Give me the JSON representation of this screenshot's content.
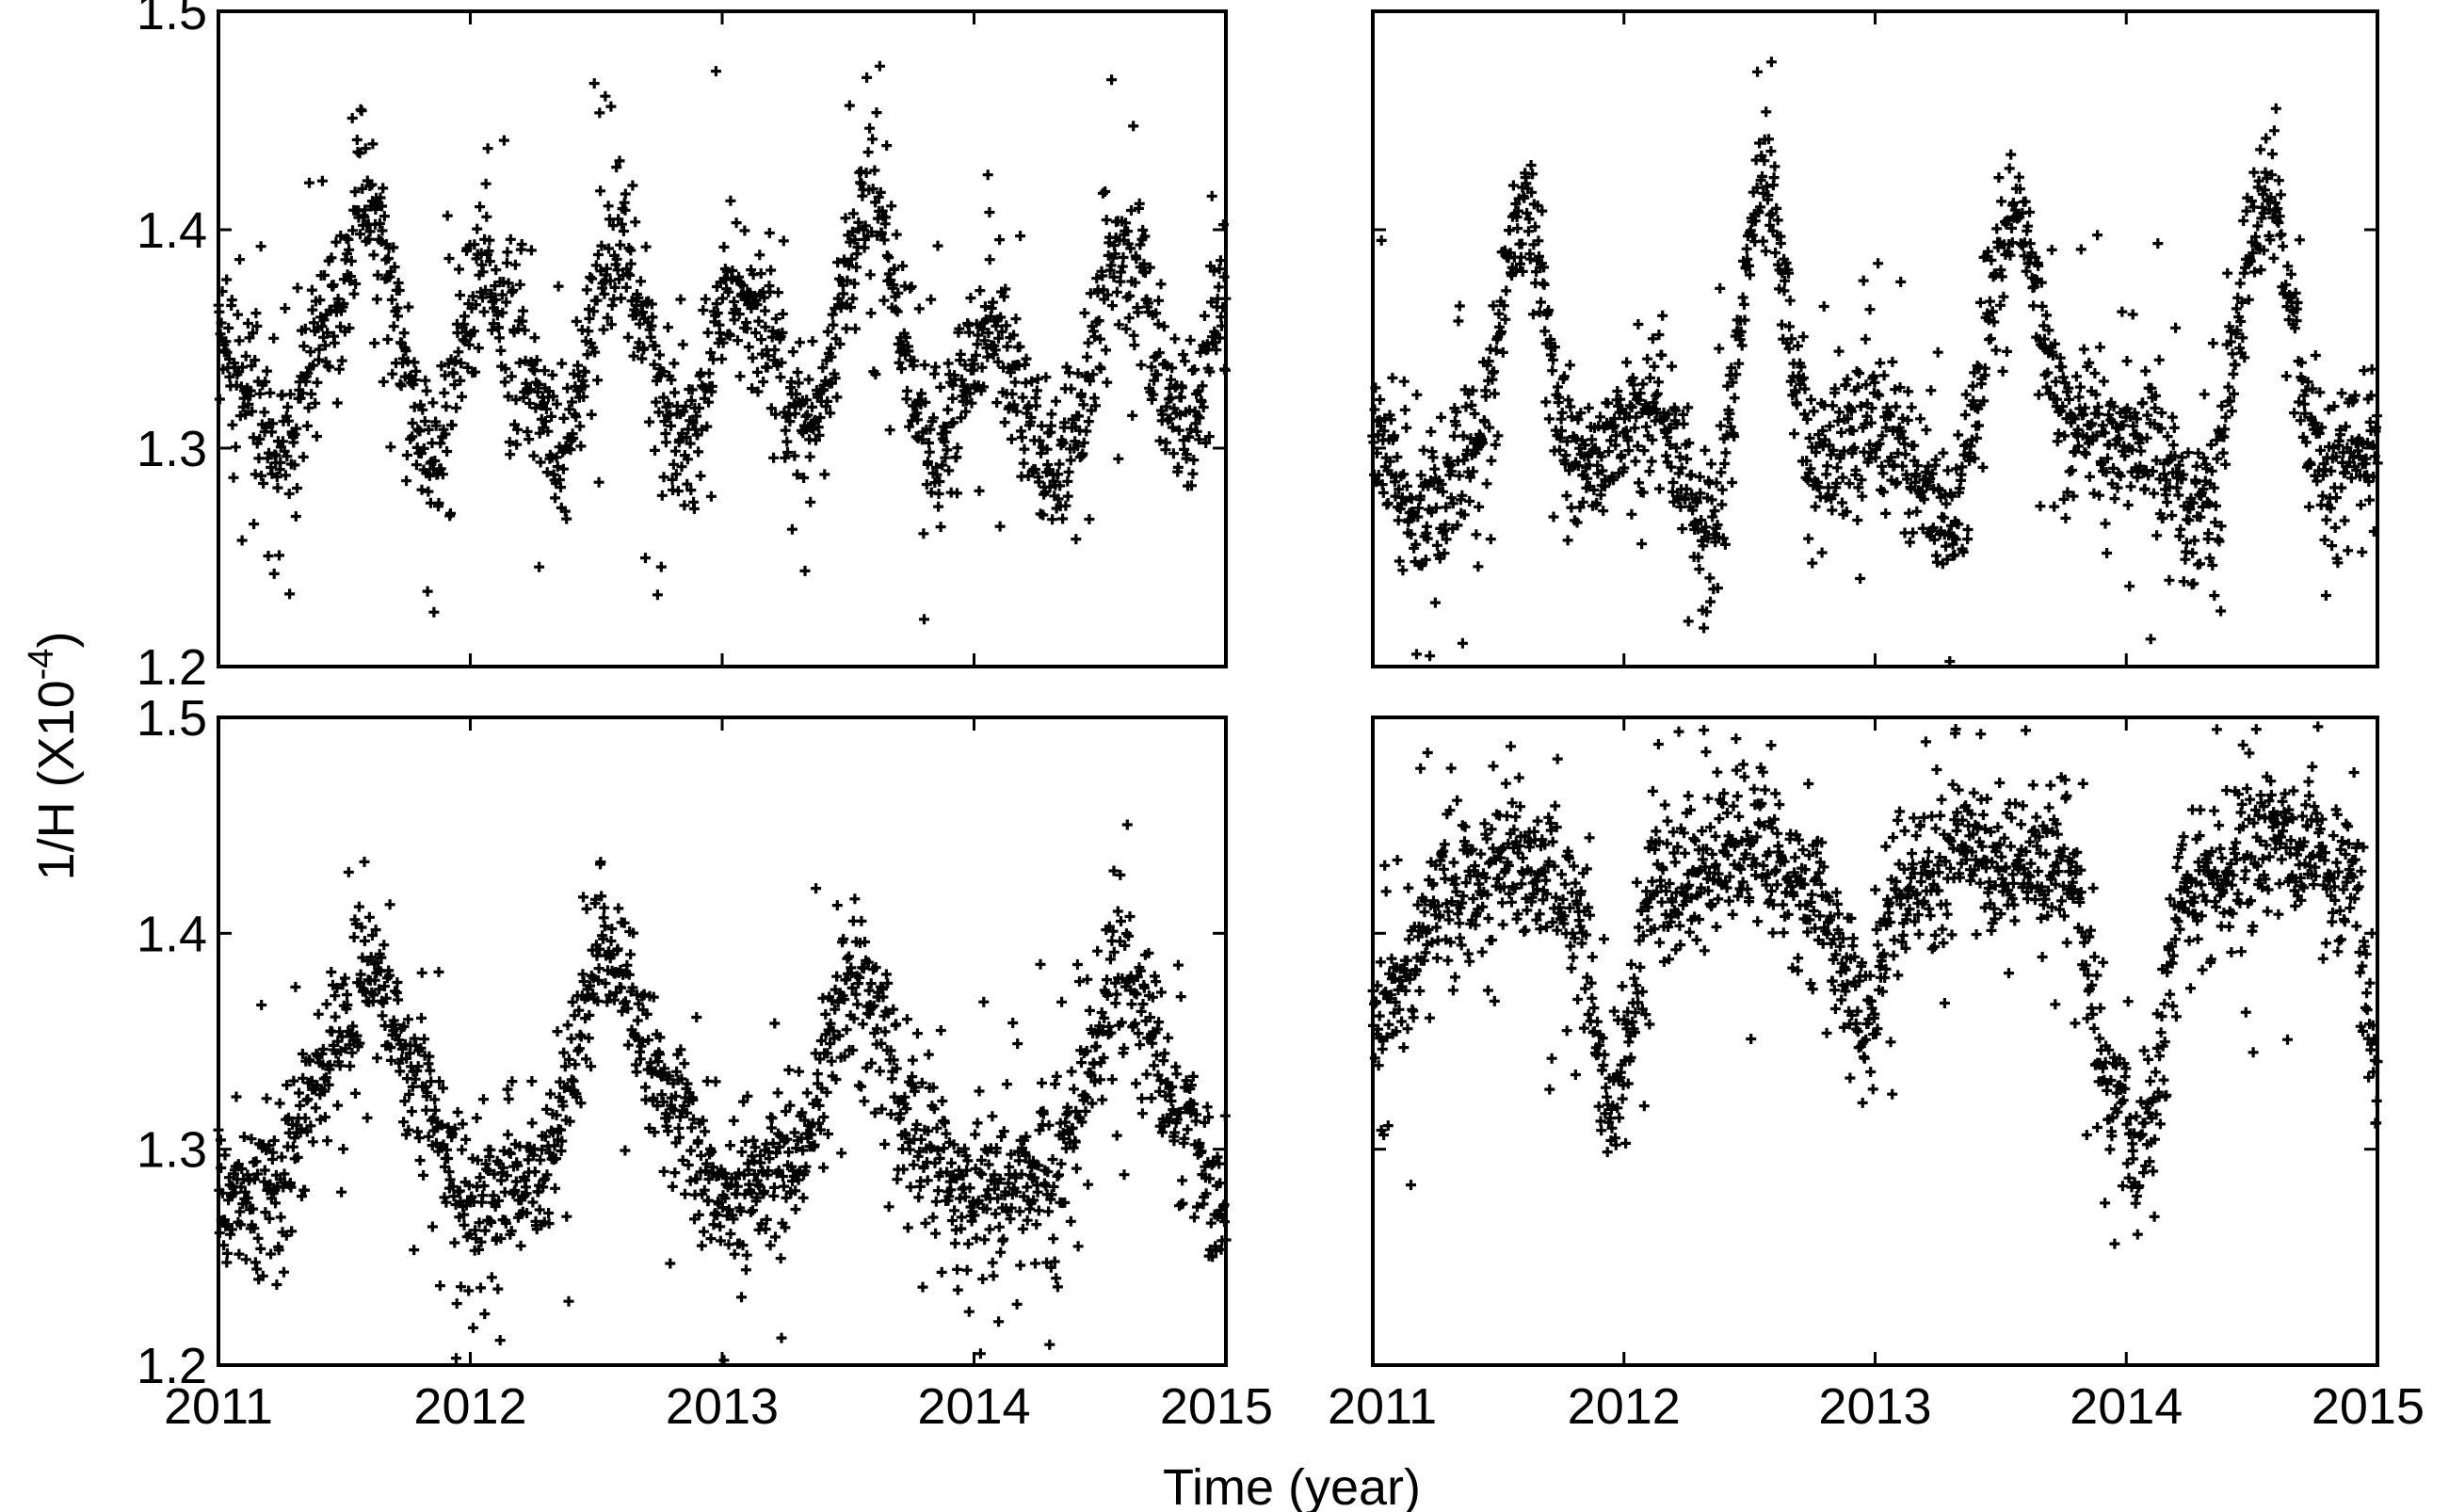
{
  "figure": {
    "ylabel": "1/H (X10",
    "ylabel_exp": "-4",
    "ylabel_close": ")",
    "xlabel": "Time (year)"
  },
  "chart_data": [
    {
      "type": "scatter",
      "panel": "top-left",
      "marker": "+",
      "color": "#000000",
      "xlim": [
        2011,
        2015
      ],
      "ylim": [
        1.2,
        1.5
      ],
      "xticks": [
        "2011",
        "2012",
        "2013",
        "2014",
        "2015"
      ],
      "show_xticklabels": false,
      "yticks": [
        "1.2",
        "1.3",
        "1.4",
        "1.5"
      ],
      "show_yticklabels": true,
      "pattern": {
        "base": 1.33,
        "amp": 0.045,
        "peaks": [
          2011.58,
          2012.58,
          2013.58,
          2014.58
        ],
        "peak_heights": [
          0.08,
          0.09,
          0.1,
          0.09
        ],
        "noise": 0.025
      },
      "trend": {
        "x": [
          2011.0,
          2011.25,
          2011.45,
          2011.58,
          2011.85,
          2012.05,
          2012.35,
          2012.58,
          2012.85,
          2013.05,
          2013.35,
          2013.58,
          2013.85,
          2014.05,
          2014.35,
          2014.58,
          2014.85,
          2015.0
        ],
        "y": [
          1.35,
          1.3,
          1.36,
          1.41,
          1.3,
          1.38,
          1.3,
          1.39,
          1.3,
          1.37,
          1.31,
          1.41,
          1.3,
          1.35,
          1.29,
          1.39,
          1.31,
          1.36
        ]
      }
    },
    {
      "type": "scatter",
      "panel": "top-right",
      "marker": "+",
      "color": "#000000",
      "xlim": [
        2011,
        2015
      ],
      "ylim": [
        1.2,
        1.5
      ],
      "xticks": [
        "2011",
        "2012",
        "2013",
        "2014",
        "2015"
      ],
      "show_xticklabels": false,
      "yticks": [
        "1.2",
        "1.3",
        "1.4",
        "1.5"
      ],
      "show_yticklabels": false,
      "trend": {
        "x": [
          2011.0,
          2011.2,
          2011.4,
          2011.6,
          2011.8,
          2012.1,
          2012.35,
          2012.55,
          2012.75,
          2013.0,
          2013.3,
          2013.55,
          2013.8,
          2014.1,
          2014.3,
          2014.55,
          2014.8,
          2015.0
        ],
        "y": [
          1.31,
          1.27,
          1.3,
          1.41,
          1.29,
          1.32,
          1.26,
          1.42,
          1.3,
          1.31,
          1.27,
          1.4,
          1.31,
          1.3,
          1.27,
          1.41,
          1.29,
          1.3
        ]
      }
    },
    {
      "type": "scatter",
      "panel": "bottom-left",
      "marker": "+",
      "color": "#000000",
      "xlim": [
        2011,
        2015
      ],
      "ylim": [
        1.2,
        1.5
      ],
      "xticks": [
        "2011",
        "2012",
        "2013",
        "2014",
        "2015"
      ],
      "show_xticklabels": true,
      "yticks": [
        "1.2",
        "1.3",
        "1.4",
        "1.5"
      ],
      "show_yticklabels": true,
      "trend": {
        "x": [
          2011.0,
          2011.2,
          2011.4,
          2011.6,
          2011.8,
          2012.0,
          2012.25,
          2012.55,
          2012.8,
          2013.0,
          2013.25,
          2013.55,
          2013.8,
          2014.0,
          2014.3,
          2014.6,
          2014.85,
          2015.0
        ],
        "y": [
          1.28,
          1.28,
          1.33,
          1.38,
          1.33,
          1.27,
          1.29,
          1.39,
          1.32,
          1.28,
          1.29,
          1.38,
          1.3,
          1.28,
          1.29,
          1.38,
          1.31,
          1.26
        ]
      }
    },
    {
      "type": "scatter",
      "panel": "bottom-right",
      "marker": "+",
      "color": "#000000",
      "xlim": [
        2011,
        2015
      ],
      "ylim": [
        1.2,
        1.5
      ],
      "xticks": [
        "2011",
        "2012",
        "2013",
        "2014",
        "2015"
      ],
      "show_xticklabels": true,
      "yticks": [
        "1.2",
        "1.3",
        "1.4",
        "1.5"
      ],
      "show_yticklabels": false,
      "trend": {
        "x": [
          2011.0,
          2011.1,
          2011.3,
          2011.6,
          2011.8,
          2011.95,
          2012.15,
          2012.5,
          2012.75,
          2012.95,
          2013.1,
          2013.4,
          2013.75,
          2013.95,
          2014.05,
          2014.25,
          2014.6,
          2014.9,
          2015.0
        ],
        "y": [
          1.36,
          1.38,
          1.42,
          1.43,
          1.41,
          1.32,
          1.42,
          1.44,
          1.42,
          1.36,
          1.42,
          1.44,
          1.43,
          1.33,
          1.3,
          1.42,
          1.44,
          1.42,
          1.33
        ]
      }
    }
  ]
}
